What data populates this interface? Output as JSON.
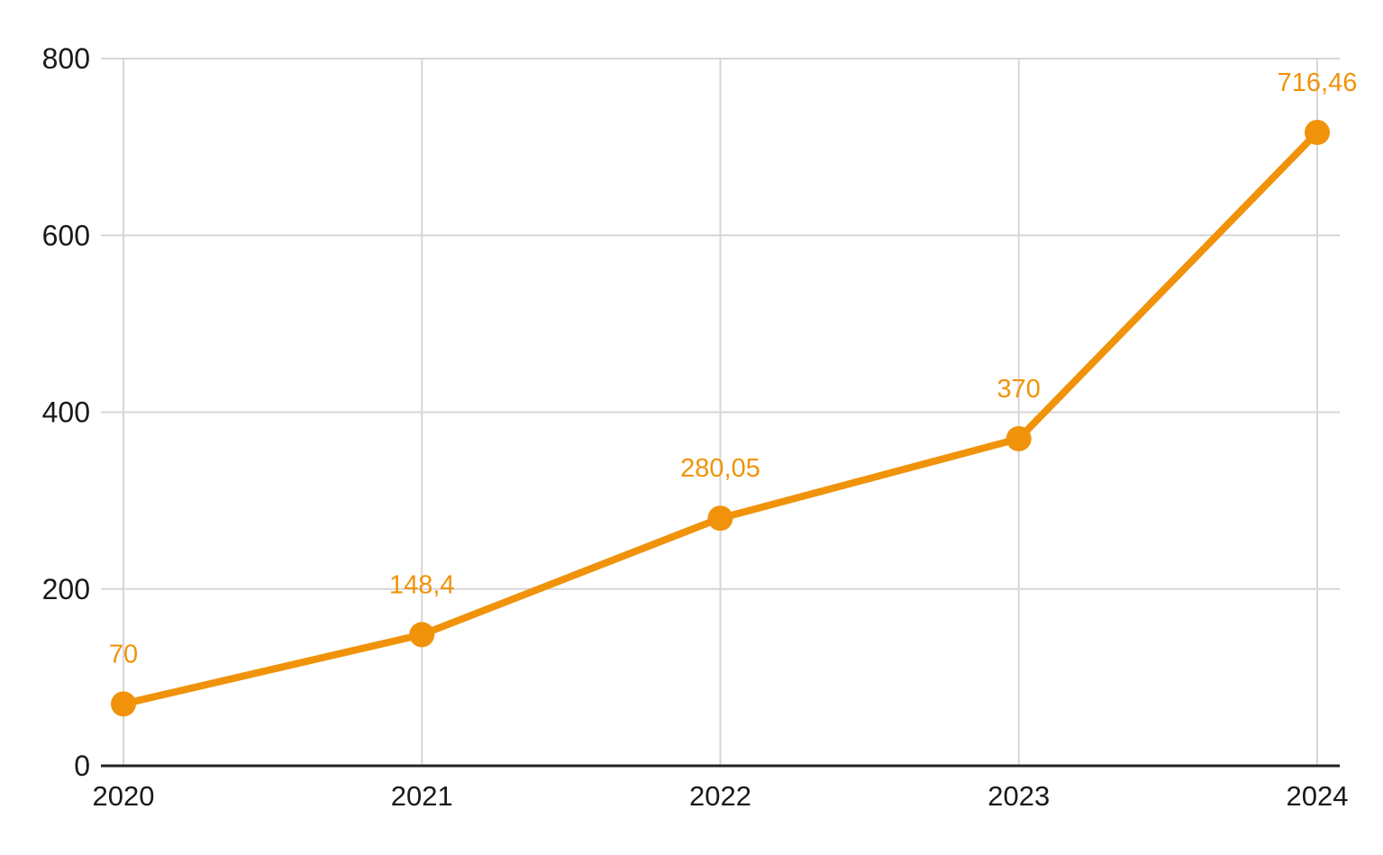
{
  "chart_data": {
    "type": "line",
    "title": "",
    "xlabel": "",
    "ylabel": "",
    "categories": [
      "2020",
      "2021",
      "2022",
      "2023",
      "2024"
    ],
    "values": [
      70,
      148.4,
      280.05,
      370,
      716.46
    ],
    "point_labels": [
      "70",
      "148,4",
      "280,05",
      "370",
      "716,46"
    ],
    "ylim": [
      0,
      800
    ],
    "yticks": [
      0,
      200,
      400,
      600,
      800
    ],
    "ytick_labels": [
      "0",
      "200",
      "400",
      "600",
      "800"
    ],
    "grid": true,
    "legend": "none",
    "marker": "circle",
    "decimal_separator": ",",
    "colors": {
      "series": "#F0930A",
      "point_label": "#F0930A",
      "gridline": "#D6D6D6",
      "axis_line": "#222222",
      "axis_text": "#1A1A1A",
      "background": "#FFFFFF"
    }
  }
}
